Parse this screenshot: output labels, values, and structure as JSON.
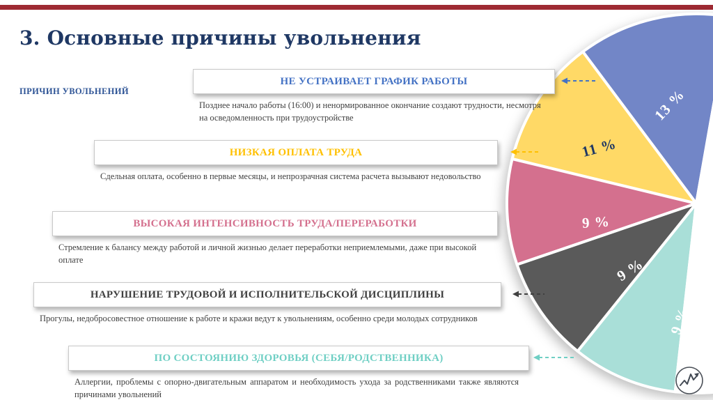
{
  "slide": {
    "title": "3. Основные причины увольнения",
    "side_label": "ПРИЧИН УВОЛЬНЕНИЙ",
    "accent_bar_color": "#9E2A33",
    "title_color": "#1F3864"
  },
  "reasons": [
    {
      "heading": "НЕ УСТРАИВАЕТ ГРАФИК РАБОТЫ",
      "description": "Позднее начало работы (16:00) и ненормированное окончание создают трудности, несмотря на осведомленность при трудоустройстве",
      "color": "#4472C4"
    },
    {
      "heading": "НИЗКАЯ ОПЛАТА ТРУДА",
      "description": "Сдельная оплата, особенно в первые месяцы, и непрозрачная система расчета вызывают недовольство",
      "color": "#FFC000"
    },
    {
      "heading": "ВЫСОКАЯ ИНТЕНСИВНОСТЬ ТРУДА/ПЕРЕРАБОТКИ",
      "description": "Стремление к балансу между работой и личной жизнью делает переработки неприемлемыми, даже при высокой оплате",
      "color": "#D4708E"
    },
    {
      "heading": "НАРУШЕНИЕ ТРУДОВОЙ И ИСПОЛНИТЕЛЬСКОЙ ДИСЦИПЛИНЫ",
      "description": "Прогулы, недобросовестное отношение к работе и кражи ведут к увольнениям, особенно среди молодых сотрудников",
      "color": "#404040"
    },
    {
      "heading": "ПО СОСТОЯНИЮ ЗДОРОВЬЯ (СЕБЯ/РОДСТВЕННИКА)",
      "description": "Аллергии, проблемы с опорно-двигательным аппаратом и необходимость ухода за родственниками также являются причинами увольнений",
      "color": "#6FCFC4"
    }
  ],
  "chart_data": {
    "type": "pie",
    "title": "",
    "unit": "%",
    "categories": [
      "Не устраивает график работы",
      "Низкая оплата труда",
      "Высокая интенсивность труда/переработки",
      "Нарушение трудовой и исполнительской дисциплины",
      "По состоянию здоровья (себя/родственника)",
      ""
    ],
    "values": [
      13,
      11,
      9,
      9,
      9,
      49
    ],
    "labels": [
      "13 %",
      "11 %",
      "9 %",
      "9 %",
      "9 %",
      ""
    ],
    "colors": [
      "#7286C7",
      "#FFD966",
      "#D4708E",
      "#5A5A5A",
      "#A9DFD8",
      "#FFFFFF"
    ],
    "label_colors": [
      "#FFFFFF",
      "#1F3864",
      "#FFFFFF",
      "#FFFFFF",
      "#FFFFFF",
      ""
    ],
    "legend": "none",
    "start_angle_deg": 10,
    "direction": "counterclockwise"
  },
  "icons": {
    "logo": "pulse-chart-in-circle-icon"
  }
}
